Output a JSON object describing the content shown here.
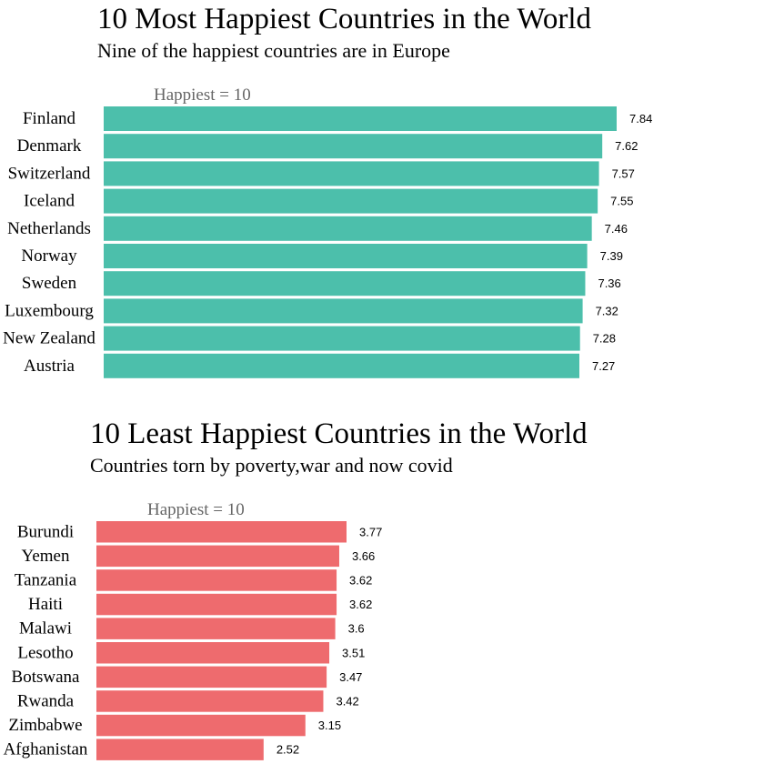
{
  "chart_data": [
    {
      "type": "bar",
      "orientation": "horizontal",
      "title": "10 Most Happiest Countries in the World",
      "subtitle": "Nine of the happiest countries are in Europe",
      "scale_note": "Happiest = 10",
      "categories": [
        "Finland",
        "Denmark",
        "Switzerland",
        "Iceland",
        "Netherlands",
        "Norway",
        "Sweden",
        "Luxembourg",
        "New Zealand",
        "Austria"
      ],
      "values": [
        7.84,
        7.62,
        7.57,
        7.55,
        7.46,
        7.39,
        7.36,
        7.32,
        7.28,
        7.27
      ],
      "value_labels": [
        "7.84",
        "7.62",
        "7.57",
        "7.55",
        "7.46",
        "7.39",
        "7.36",
        "7.32",
        "7.28",
        "7.27"
      ],
      "bar_color": "#4cbfab",
      "xlim": [
        0,
        7.84
      ],
      "grid": false,
      "legend": "none"
    },
    {
      "type": "bar",
      "orientation": "horizontal",
      "title": "10 Least Happiest Countries in the World",
      "subtitle": "Countries torn by poverty,war and now covid",
      "scale_note": "Happiest = 10",
      "categories": [
        "Burundi",
        "Yemen",
        "Tanzania",
        "Haiti",
        "Malawi",
        "Lesotho",
        "Botswana",
        "Rwanda",
        "Zimbabwe",
        "Afghanistan"
      ],
      "values": [
        3.77,
        3.66,
        3.62,
        3.62,
        3.6,
        3.51,
        3.47,
        3.42,
        3.15,
        2.52
      ],
      "value_labels": [
        "3.77",
        "3.66",
        "3.62",
        "3.62",
        "3.6",
        "3.51",
        "3.47",
        "3.42",
        "3.15",
        "2.52"
      ],
      "bar_color": "#ee6b6e",
      "xlim": [
        0,
        7.84
      ],
      "grid": false,
      "legend": "none"
    }
  ]
}
